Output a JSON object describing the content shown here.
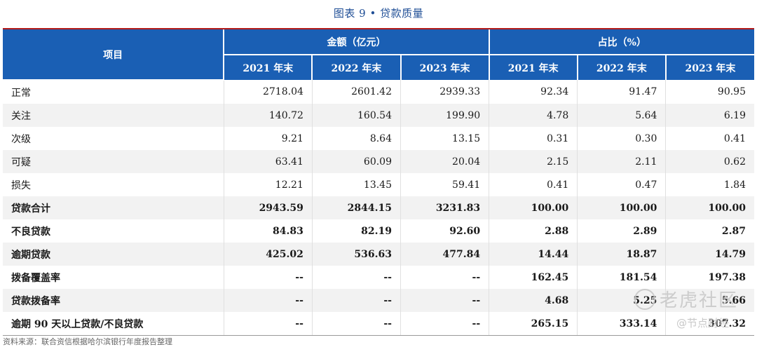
{
  "title": "图表 9 • 贷款质量",
  "header": {
    "item_label": "项目",
    "group_amount": "金额（亿元）",
    "group_ratio": "占比（%）",
    "years": [
      "2021 年末",
      "2022 年末",
      "2023 年末",
      "2021 年末",
      "2022 年末",
      "2023 年末"
    ]
  },
  "rows": [
    {
      "label": "正常",
      "values": [
        "2718.04",
        "2601.42",
        "2939.33",
        "92.34",
        "91.47",
        "90.95"
      ]
    },
    {
      "label": "关注",
      "values": [
        "140.72",
        "160.54",
        "199.90",
        "4.78",
        "5.64",
        "6.19"
      ]
    },
    {
      "label": "次级",
      "values": [
        "9.21",
        "8.64",
        "13.15",
        "0.31",
        "0.30",
        "0.41"
      ]
    },
    {
      "label": "可疑",
      "values": [
        "63.41",
        "60.09",
        "20.04",
        "2.15",
        "2.11",
        "0.62"
      ]
    },
    {
      "label": "损失",
      "values": [
        "12.21",
        "13.45",
        "59.41",
        "0.41",
        "0.47",
        "1.84"
      ]
    },
    {
      "label": "贷款合计",
      "values": [
        "2943.59",
        "2844.15",
        "3231.83",
        "100.00",
        "100.00",
        "100.00"
      ]
    },
    {
      "label": "不良贷款",
      "values": [
        "84.83",
        "82.19",
        "92.60",
        "2.88",
        "2.89",
        "2.87"
      ]
    },
    {
      "label": "逾期贷款",
      "values": [
        "425.02",
        "536.63",
        "477.84",
        "14.44",
        "18.87",
        "14.79"
      ]
    },
    {
      "label": "拨备覆盖率",
      "values": [
        "--",
        "--",
        "--",
        "162.45",
        "181.54",
        "197.38"
      ]
    },
    {
      "label": "贷款拨备率",
      "values": [
        "--",
        "--",
        "--",
        "4.68",
        "5.25",
        "5.66"
      ]
    },
    {
      "label": "逾期 90 天以上贷款/不良贷款",
      "values": [
        "--",
        "--",
        "--",
        "265.15",
        "333.14",
        "307.32"
      ]
    }
  ],
  "source": "资料来源：联合资信根据哈尔滨银行年度报告整理",
  "watermark": {
    "brand": "老虎社区",
    "handle": "@节点财经"
  }
}
